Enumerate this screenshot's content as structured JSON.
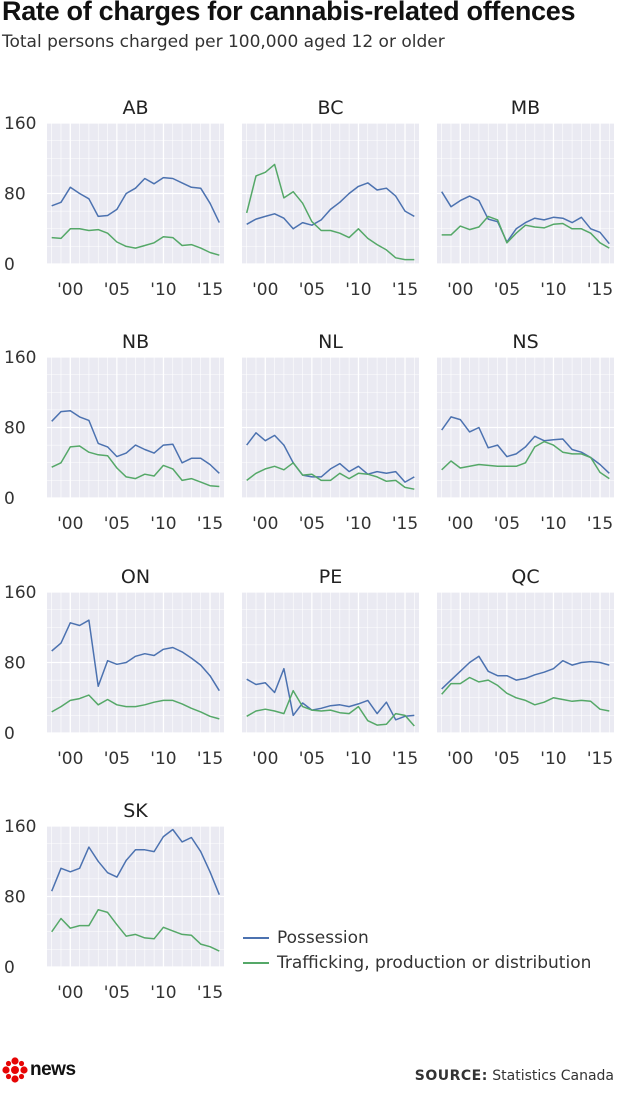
{
  "title": "Rate of charges for cannabis-related offences",
  "subtitle": "Total persons charged per 100,000 aged 12 or older",
  "source": {
    "label": "SOURCE:",
    "text": "Statistics Canada"
  },
  "logo": {
    "text": "news"
  },
  "colors": {
    "possession": "#4c72b0",
    "trafficking": "#55a868",
    "panel_bg": "#eaeaf2",
    "grid": "#ffffff"
  },
  "chart_data": {
    "type": "line",
    "layout": "small-multiples",
    "x": [
      1998,
      1999,
      2000,
      2001,
      2002,
      2003,
      2004,
      2005,
      2006,
      2007,
      2008,
      2009,
      2010,
      2011,
      2012,
      2013,
      2014,
      2015,
      2016
    ],
    "xticks": [
      2000,
      2005,
      2010,
      2015
    ],
    "xtick_labels": [
      "'00",
      "'05",
      "'10",
      "'15"
    ],
    "ylim": [
      0,
      160
    ],
    "yticks": [
      0,
      80,
      160
    ],
    "grid": true,
    "legend": {
      "placement": "bottom-right",
      "entries": [
        "Possession",
        "Trafficking, production or distribution"
      ]
    },
    "panels": [
      {
        "name": "AB",
        "series": [
          {
            "name": "Possession",
            "values": [
              66,
              70,
              87,
              80,
              74,
              54,
              55,
              62,
              80,
              86,
              97,
              91,
              98,
              97,
              92,
              87,
              86,
              69,
              47
            ]
          },
          {
            "name": "Trafficking, production or distribution",
            "values": [
              30,
              29,
              40,
              40,
              38,
              39,
              35,
              25,
              20,
              18,
              21,
              24,
              31,
              30,
              21,
              22,
              18,
              13,
              10
            ]
          }
        ]
      },
      {
        "name": "BC",
        "series": [
          {
            "name": "Possession",
            "values": [
              45,
              51,
              54,
              57,
              52,
              40,
              47,
              44,
              50,
              62,
              70,
              80,
              88,
              92,
              84,
              86,
              77,
              60,
              54
            ]
          },
          {
            "name": "Trafficking, production or distribution",
            "values": [
              58,
              100,
              104,
              113,
              75,
              82,
              69,
              48,
              38,
              38,
              35,
              30,
              40,
              29,
              22,
              16,
              7,
              5,
              5
            ]
          }
        ]
      },
      {
        "name": "MB",
        "series": [
          {
            "name": "Possession",
            "values": [
              82,
              65,
              72,
              77,
              72,
              51,
              48,
              25,
              40,
              47,
              52,
              50,
              53,
              52,
              47,
              53,
              40,
              36,
              23
            ]
          },
          {
            "name": "Trafficking, production or distribution",
            "values": [
              33,
              33,
              43,
              39,
              42,
              54,
              50,
              24,
              35,
              44,
              42,
              41,
              45,
              46,
              40,
              40,
              35,
              24,
              18
            ]
          }
        ]
      },
      {
        "name": "NB",
        "series": [
          {
            "name": "Possession",
            "values": [
              87,
              98,
              99,
              92,
              88,
              62,
              58,
              47,
              51,
              60,
              55,
              51,
              60,
              61,
              40,
              45,
              45,
              38,
              28
            ]
          },
          {
            "name": "Trafficking, production or distribution",
            "values": [
              35,
              40,
              58,
              59,
              52,
              49,
              48,
              34,
              24,
              22,
              27,
              25,
              37,
              33,
              20,
              22,
              18,
              14,
              13
            ]
          }
        ]
      },
      {
        "name": "NL",
        "series": [
          {
            "name": "Possession",
            "values": [
              60,
              74,
              65,
              71,
              60,
              40,
              26,
              24,
              24,
              33,
              39,
              30,
              36,
              27,
              30,
              28,
              30,
              18,
              24
            ]
          },
          {
            "name": "Trafficking, production or distribution",
            "values": [
              20,
              28,
              33,
              36,
              32,
              40,
              26,
              27,
              20,
              20,
              28,
              22,
              28,
              27,
              24,
              19,
              20,
              12,
              10
            ]
          }
        ]
      },
      {
        "name": "NS",
        "series": [
          {
            "name": "Possession",
            "values": [
              77,
              92,
              89,
              75,
              80,
              57,
              60,
              47,
              50,
              58,
              70,
              65,
              66,
              67,
              55,
              52,
              46,
              38,
              28
            ]
          },
          {
            "name": "Trafficking, production or distribution",
            "values": [
              32,
              42,
              34,
              36,
              38,
              37,
              36,
              36,
              36,
              40,
              58,
              64,
              60,
              52,
              50,
              50,
              46,
              29,
              22
            ]
          }
        ]
      },
      {
        "name": "ON",
        "series": [
          {
            "name": "Possession",
            "values": [
              93,
              102,
              125,
              122,
              128,
              53,
              82,
              78,
              80,
              87,
              90,
              88,
              95,
              97,
              92,
              85,
              77,
              65,
              48
            ]
          },
          {
            "name": "Trafficking, production or distribution",
            "values": [
              24,
              30,
              37,
              39,
              43,
              32,
              38,
              32,
              30,
              30,
              32,
              35,
              37,
              37,
              33,
              28,
              24,
              19,
              16
            ]
          }
        ]
      },
      {
        "name": "PE",
        "series": [
          {
            "name": "Possession",
            "values": [
              61,
              55,
              57,
              46,
              73,
              20,
              34,
              26,
              28,
              31,
              32,
              30,
              33,
              37,
              22,
              35,
              15,
              19,
              20
            ]
          },
          {
            "name": "Trafficking, production or distribution",
            "values": [
              19,
              25,
              27,
              25,
              22,
              48,
              30,
              26,
              25,
              26,
              23,
              22,
              30,
              14,
              9,
              10,
              22,
              20,
              8
            ]
          }
        ]
      },
      {
        "name": "QC",
        "series": [
          {
            "name": "Possession",
            "values": [
              50,
              60,
              70,
              80,
              87,
              70,
              65,
              65,
              60,
              62,
              66,
              69,
              73,
              82,
              77,
              80,
              81,
              80,
              77
            ]
          },
          {
            "name": "Trafficking, production or distribution",
            "values": [
              44,
              56,
              56,
              63,
              58,
              60,
              54,
              45,
              40,
              37,
              32,
              35,
              40,
              38,
              36,
              37,
              36,
              27,
              25
            ]
          }
        ]
      },
      {
        "name": "SK",
        "series": [
          {
            "name": "Possession",
            "values": [
              86,
              112,
              108,
              112,
              136,
              120,
              107,
              102,
              121,
              133,
              133,
              131,
              148,
              156,
              142,
              147,
              131,
              108,
              82
            ]
          },
          {
            "name": "Trafficking, production or distribution",
            "values": [
              40,
              55,
              44,
              47,
              47,
              65,
              62,
              48,
              35,
              37,
              33,
              32,
              45,
              41,
              37,
              36,
              26,
              23,
              18
            ]
          }
        ]
      }
    ]
  }
}
